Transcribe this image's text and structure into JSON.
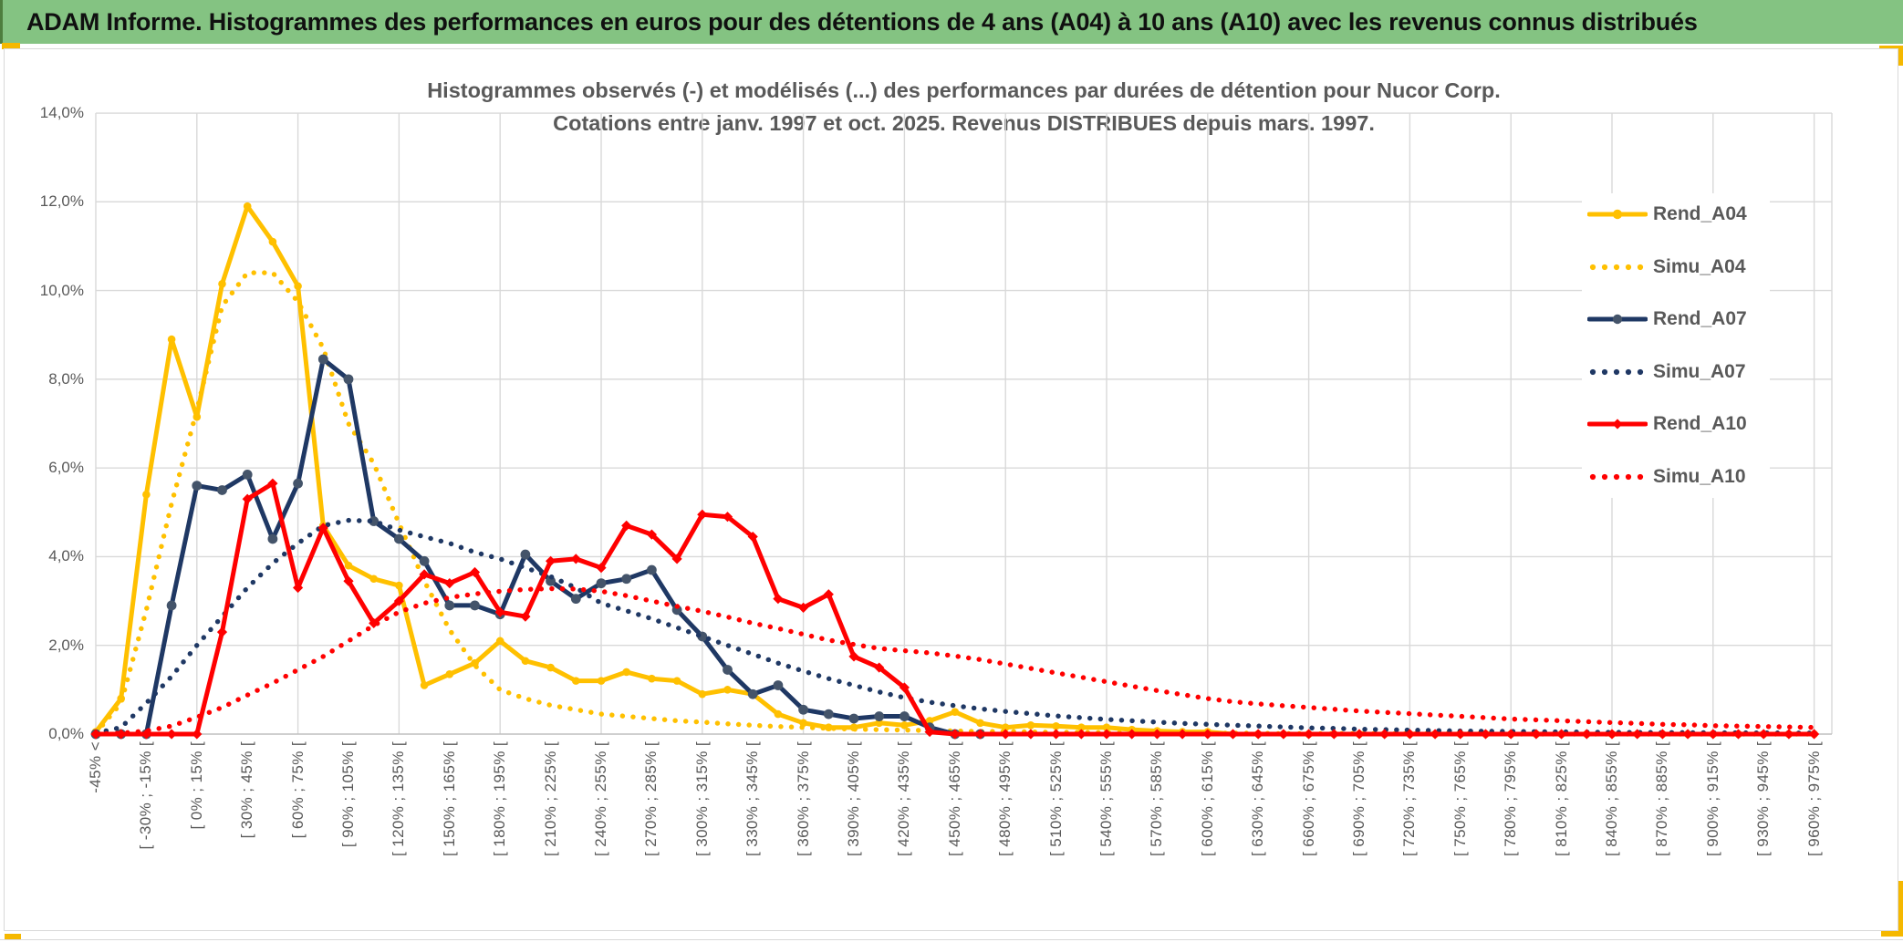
{
  "header": {
    "title": "ADAM Informe. Histogrammes des performances en euros pour des détentions de 4 ans (A04) à 10 ans (A10) avec les revenus connus distribués"
  },
  "colors": {
    "header_green": "#84c382",
    "accent_yellow": "#f5b800",
    "gold": "#ffc000",
    "navy": "#1f3864",
    "navy_marker": "#44546a",
    "red": "#ff0000",
    "grid": "#d9d9d9",
    "axis": "#bfbfbf",
    "text_gray": "#595959"
  },
  "chart_data": {
    "type": "line",
    "title_line1": "Histogrammes observés (-) et modélisés (...) des performances par durées de détention pour Nucor Corp.",
    "title_line2": "Cotations entre janv. 1997 et oct. 2025. Revenus DISTRIBUES depuis mars. 1997.",
    "ylabel": "",
    "xlabel": "",
    "ylim": [
      0,
      14
    ],
    "y_tick_labels": [
      "0,0%",
      "2,0%",
      "4,0%",
      "6,0%",
      "8,0%",
      "10,0%",
      "12,0%",
      "14,0%"
    ],
    "y_tick_values": [
      0,
      2,
      4,
      6,
      8,
      10,
      12,
      14
    ],
    "grid": "both",
    "legend_position": "right-inside",
    "n_categories": 69,
    "x_label_every": 2,
    "x_gridline_every": 4,
    "x_labels": [
      "-45% <",
      "[ -30% ; -15% [",
      "[ 0% ; 15% [",
      "[ 30% ; 45% [",
      "[ 60% ; 75% [",
      "[ 90% ; 105% [",
      "[ 120% ; 135% [",
      "[ 150% ; 165% [",
      "[ 180% ; 195% [",
      "[ 210% ; 225% [",
      "[ 240% ; 255% [",
      "[ 270% ; 285% [",
      "[ 300% ; 315% [",
      "[ 330% ; 345% [",
      "[ 360% ; 375% [",
      "[ 390% ; 405% [",
      "[ 420% ; 435% [",
      "[ 450% ; 465% [",
      "[ 480% ; 495% [",
      "[ 510% ; 525% [",
      "[ 540% ; 555% [",
      "[ 570% ; 585% [",
      "[ 600% ; 615% [",
      "[ 630% ; 645% [",
      "[ 660% ; 675% [",
      "[ 690% ; 705% [",
      "[ 720% ; 735% [",
      "[ 750% ; 765% [",
      "[ 780% ; 795% [",
      "[ 810% ; 825% [",
      "[ 840% ; 855% [",
      "[ 870% ; 885% [",
      "[ 900% ; 915% [",
      "[ 930% ; 945% [",
      "[ 960% ; 975% ["
    ],
    "series": [
      {
        "name": "Rend_A04",
        "color": "#ffc000",
        "style": "solid",
        "marker": "circle",
        "values": [
          0.05,
          0.8,
          5.4,
          8.9,
          7.15,
          10.15,
          11.9,
          11.1,
          10.1,
          4.7,
          3.8,
          3.5,
          3.35,
          1.1,
          1.35,
          1.6,
          2.1,
          1.65,
          1.5,
          1.2,
          1.2,
          1.4,
          1.25,
          1.2,
          0.9,
          1.0,
          0.9,
          0.45,
          0.25,
          0.15,
          0.15,
          0.25,
          0.2,
          0.3,
          0.5,
          0.25,
          0.15,
          0.2,
          0.18,
          0.15,
          0.15,
          0.1,
          0.07,
          0.05,
          0.05,
          0,
          0,
          0,
          0,
          0,
          0,
          0,
          0,
          0,
          0,
          0,
          0,
          0,
          0,
          0,
          0,
          0,
          0,
          0,
          0,
          0,
          0,
          0,
          0
        ]
      },
      {
        "name": "Simu_A04",
        "color": "#ffc000",
        "style": "dotted",
        "marker": "none",
        "values": [
          0.02,
          0.7,
          2.8,
          5.2,
          7.3,
          9.65,
          10.4,
          10.4,
          9.75,
          8.7,
          7.0,
          6.1,
          4.75,
          3.45,
          2.35,
          1.55,
          1.0,
          0.8,
          0.65,
          0.55,
          0.45,
          0.4,
          0.35,
          0.3,
          0.27,
          0.23,
          0.2,
          0.17,
          0.15,
          0.13,
          0.11,
          0.1,
          0.09,
          0.08,
          0.07,
          0.06,
          0.06,
          0.05,
          0.04,
          0.04,
          0.03,
          0.03,
          0.03,
          0.02,
          0.02,
          0.02,
          0.02,
          0.01,
          0.01,
          0.01,
          0.01,
          0.01,
          0.01,
          0.01,
          0.01,
          0.01,
          0,
          0,
          0,
          0,
          0,
          0,
          0,
          0,
          0,
          0,
          0,
          0,
          0
        ]
      },
      {
        "name": "Rend_A07",
        "color": "#1f3864",
        "style": "solid",
        "marker": "circle-gray",
        "values": [
          0,
          0,
          0,
          2.9,
          5.6,
          5.5,
          5.85,
          4.4,
          5.65,
          8.45,
          8.0,
          4.8,
          4.4,
          3.9,
          2.9,
          2.9,
          2.7,
          4.05,
          3.45,
          3.05,
          3.4,
          3.5,
          3.7,
          2.8,
          2.2,
          1.45,
          0.9,
          1.1,
          0.55,
          0.45,
          0.35,
          0.4,
          0.4,
          0.15,
          0,
          0,
          null,
          null,
          null,
          null,
          null,
          null,
          null,
          null,
          null,
          null,
          null,
          null,
          null,
          null,
          null,
          null,
          null,
          null,
          null,
          null,
          null,
          null,
          null,
          null,
          null,
          null,
          null,
          null,
          null,
          null,
          null,
          null,
          null
        ]
      },
      {
        "name": "Simu_A07",
        "color": "#1f3864",
        "style": "dotted",
        "marker": "none",
        "values": [
          0.02,
          0.15,
          0.7,
          1.3,
          2.0,
          2.65,
          3.3,
          3.85,
          4.3,
          4.7,
          4.82,
          4.8,
          4.6,
          4.45,
          4.3,
          4.1,
          3.95,
          3.75,
          3.55,
          3.3,
          2.95,
          2.78,
          2.6,
          2.4,
          2.2,
          2.0,
          1.8,
          1.6,
          1.42,
          1.25,
          1.1,
          0.95,
          0.82,
          0.72,
          0.64,
          0.57,
          0.51,
          0.46,
          0.41,
          0.37,
          0.33,
          0.3,
          0.27,
          0.24,
          0.22,
          0.2,
          0.18,
          0.16,
          0.14,
          0.13,
          0.11,
          0.1,
          0.09,
          0.08,
          0.07,
          0.065,
          0.06,
          0.055,
          0.05,
          0.045,
          0.04,
          0.038,
          0.035,
          0.032,
          0.03,
          0.028,
          0.026,
          0.024,
          0.022
        ]
      },
      {
        "name": "Rend_A10",
        "color": "#ff0000",
        "style": "solid",
        "marker": "diamond",
        "values": [
          0,
          0,
          0,
          0,
          0,
          2.3,
          5.3,
          5.65,
          3.3,
          4.65,
          3.45,
          2.5,
          3.0,
          3.6,
          3.4,
          3.65,
          2.75,
          2.65,
          3.9,
          3.95,
          3.75,
          4.7,
          4.5,
          3.95,
          4.95,
          4.9,
          4.45,
          3.05,
          2.85,
          3.15,
          1.75,
          1.5,
          1.05,
          0.05,
          0,
          0,
          0,
          0,
          0,
          0,
          0,
          0,
          0,
          0,
          0,
          0,
          0,
          0,
          0,
          0,
          0,
          0,
          0,
          0,
          0,
          0,
          0,
          0,
          0,
          0,
          0,
          0,
          0,
          0,
          0,
          0,
          0,
          0,
          0
        ]
      },
      {
        "name": "Simu_A10",
        "color": "#ff0000",
        "style": "dotted",
        "marker": "none",
        "values": [
          0,
          0.02,
          0.07,
          0.18,
          0.38,
          0.6,
          0.88,
          1.15,
          1.45,
          1.75,
          2.1,
          2.45,
          2.75,
          2.95,
          3.08,
          3.16,
          3.22,
          3.26,
          3.28,
          3.27,
          3.22,
          3.12,
          3.0,
          2.88,
          2.77,
          2.64,
          2.5,
          2.38,
          2.25,
          2.12,
          2.02,
          1.93,
          1.88,
          1.83,
          1.76,
          1.68,
          1.58,
          1.48,
          1.38,
          1.28,
          1.18,
          1.08,
          0.98,
          0.89,
          0.8,
          0.73,
          0.68,
          0.64,
          0.6,
          0.56,
          0.52,
          0.49,
          0.46,
          0.43,
          0.4,
          0.37,
          0.34,
          0.32,
          0.3,
          0.28,
          0.26,
          0.24,
          0.22,
          0.21,
          0.19,
          0.18,
          0.17,
          0.16,
          0.15
        ]
      }
    ]
  }
}
